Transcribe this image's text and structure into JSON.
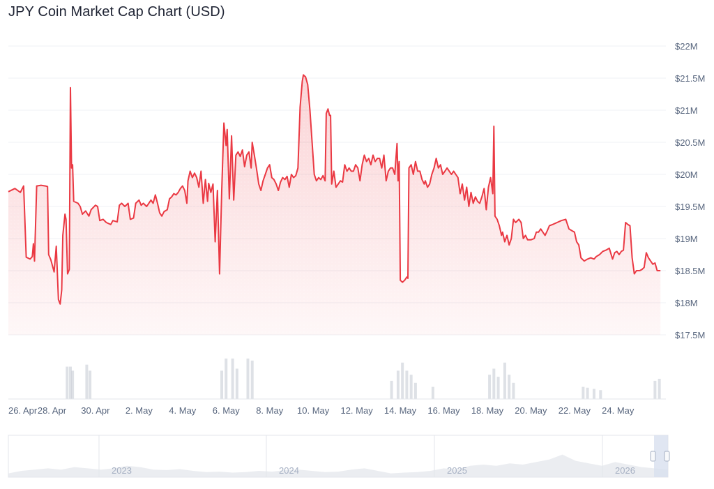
{
  "title": "JPY Coin Market Cap Chart (USD)",
  "colors": {
    "line": "#ea3943",
    "area": "#ea3943",
    "grid": "#eff2f5",
    "axis_text": "#58667e",
    "volume": "#c8cdd6",
    "navigator_area": "#e6e9ee",
    "navigator_window": "#d8e0ef"
  },
  "chart_data": {
    "type": "line",
    "title": "JPY Coin Market Cap Chart (USD)",
    "y_ticks": [
      "$22M",
      "$21.5M",
      "$21M",
      "$20.5M",
      "$20M",
      "$19.5M",
      "$19M",
      "$18.5M",
      "$18M",
      "$17.5M"
    ],
    "ylim": [
      17.5,
      22
    ],
    "x_ticks": [
      "26. Apr",
      "28. Apr",
      "30. Apr",
      "2. May",
      "4. May",
      "6. May",
      "8. May",
      "10. May",
      "12. May",
      "14. May",
      "16. May",
      "18. May",
      "20. May",
      "22. May",
      "24. May"
    ],
    "xlim": [
      0,
      30.2
    ],
    "grid": true,
    "legend": "none",
    "series": [
      {
        "points": [
          [
            0.0,
            19.73
          ],
          [
            0.3,
            19.78
          ],
          [
            0.55,
            19.72
          ],
          [
            0.7,
            19.82
          ],
          [
            0.82,
            18.71
          ],
          [
            1.0,
            18.68
          ],
          [
            1.1,
            18.72
          ],
          [
            1.15,
            18.92
          ],
          [
            1.2,
            18.65
          ],
          [
            1.3,
            19.82
          ],
          [
            1.5,
            19.83
          ],
          [
            1.7,
            19.82
          ],
          [
            1.8,
            19.81
          ],
          [
            1.85,
            18.75
          ],
          [
            1.95,
            18.67
          ],
          [
            2.1,
            18.48
          ],
          [
            2.2,
            18.88
          ],
          [
            2.3,
            18.05
          ],
          [
            2.38,
            17.98
          ],
          [
            2.45,
            18.2
          ],
          [
            2.5,
            19.05
          ],
          [
            2.6,
            19.38
          ],
          [
            2.65,
            19.3
          ],
          [
            2.72,
            18.45
          ],
          [
            2.8,
            18.52
          ],
          [
            2.85,
            21.35
          ],
          [
            2.9,
            20.1
          ],
          [
            2.95,
            20.15
          ],
          [
            3.0,
            19.58
          ],
          [
            3.2,
            19.55
          ],
          [
            3.3,
            19.5
          ],
          [
            3.4,
            19.38
          ],
          [
            3.55,
            19.43
          ],
          [
            3.7,
            19.35
          ],
          [
            3.8,
            19.45
          ],
          [
            4.0,
            19.52
          ],
          [
            4.1,
            19.5
          ],
          [
            4.2,
            19.28
          ],
          [
            4.35,
            19.3
          ],
          [
            4.5,
            19.25
          ],
          [
            4.7,
            19.22
          ],
          [
            4.8,
            19.28
          ],
          [
            5.0,
            19.26
          ],
          [
            5.1,
            19.52
          ],
          [
            5.2,
            19.55
          ],
          [
            5.35,
            19.5
          ],
          [
            5.5,
            19.55
          ],
          [
            5.6,
            19.3
          ],
          [
            5.75,
            19.32
          ],
          [
            5.85,
            19.55
          ],
          [
            6.0,
            19.6
          ],
          [
            6.1,
            19.52
          ],
          [
            6.2,
            19.55
          ],
          [
            6.35,
            19.5
          ],
          [
            6.45,
            19.55
          ],
          [
            6.55,
            19.6
          ],
          [
            6.65,
            19.55
          ],
          [
            6.75,
            19.68
          ],
          [
            6.85,
            19.55
          ],
          [
            6.95,
            19.4
          ],
          [
            7.05,
            19.35
          ],
          [
            7.15,
            19.42
          ],
          [
            7.3,
            19.45
          ],
          [
            7.4,
            19.62
          ],
          [
            7.5,
            19.65
          ],
          [
            7.6,
            19.7
          ],
          [
            7.7,
            19.68
          ],
          [
            7.8,
            19.72
          ],
          [
            7.9,
            19.78
          ],
          [
            8.0,
            19.82
          ],
          [
            8.1,
            19.75
          ],
          [
            8.2,
            19.55
          ],
          [
            8.25,
            19.9
          ],
          [
            8.35,
            20.05
          ],
          [
            8.45,
            19.95
          ],
          [
            8.55,
            20.02
          ],
          [
            8.65,
            19.95
          ],
          [
            8.75,
            19.8
          ],
          [
            8.85,
            20.05
          ],
          [
            8.95,
            19.55
          ],
          [
            9.05,
            19.92
          ],
          [
            9.15,
            19.58
          ],
          [
            9.2,
            19.86
          ],
          [
            9.3,
            19.72
          ],
          [
            9.4,
            19.85
          ],
          [
            9.5,
            18.95
          ],
          [
            9.6,
            19.75
          ],
          [
            9.7,
            18.45
          ],
          [
            9.8,
            19.75
          ],
          [
            9.9,
            20.8
          ],
          [
            10.0,
            20.45
          ],
          [
            10.05,
            20.7
          ],
          [
            10.15,
            19.62
          ],
          [
            10.25,
            20.6
          ],
          [
            10.35,
            19.6
          ],
          [
            10.45,
            20.3
          ],
          [
            10.55,
            20.35
          ],
          [
            10.65,
            20.28
          ],
          [
            10.75,
            20.38
          ],
          [
            10.85,
            20.12
          ],
          [
            10.95,
            20.3
          ],
          [
            11.05,
            20.35
          ],
          [
            11.15,
            20.1
          ],
          [
            11.2,
            20.5
          ],
          [
            11.3,
            20.3
          ],
          [
            11.4,
            20.08
          ],
          [
            11.5,
            19.85
          ],
          [
            11.6,
            19.75
          ],
          [
            11.7,
            19.9
          ],
          [
            11.8,
            20.0
          ],
          [
            11.9,
            20.1
          ],
          [
            12.0,
            20.15
          ],
          [
            12.1,
            19.95
          ],
          [
            12.2,
            19.92
          ],
          [
            12.3,
            19.85
          ],
          [
            12.4,
            19.75
          ],
          [
            12.5,
            19.88
          ],
          [
            12.6,
            19.95
          ],
          [
            12.7,
            19.92
          ],
          [
            12.8,
            19.97
          ],
          [
            12.9,
            19.8
          ],
          [
            13.0,
            20.0
          ],
          [
            13.1,
            19.95
          ],
          [
            13.2,
            19.98
          ],
          [
            13.3,
            20.1
          ],
          [
            13.4,
            21.05
          ],
          [
            13.5,
            21.45
          ],
          [
            13.55,
            21.55
          ],
          [
            13.65,
            21.52
          ],
          [
            13.75,
            21.4
          ],
          [
            13.85,
            21.0
          ],
          [
            13.95,
            20.5
          ],
          [
            14.05,
            20.0
          ],
          [
            14.15,
            19.9
          ],
          [
            14.25,
            19.95
          ],
          [
            14.35,
            19.92
          ],
          [
            14.45,
            19.98
          ],
          [
            14.55,
            19.9
          ],
          [
            14.6,
            20.95
          ],
          [
            14.68,
            21.02
          ],
          [
            14.75,
            20.92
          ],
          [
            14.8,
            20.92
          ],
          [
            14.85,
            19.85
          ],
          [
            14.95,
            20.05
          ],
          [
            15.05,
            19.8
          ],
          [
            15.15,
            19.85
          ],
          [
            15.25,
            19.9
          ],
          [
            15.35,
            19.88
          ],
          [
            15.45,
            20.15
          ],
          [
            15.55,
            20.05
          ],
          [
            15.65,
            20.1
          ],
          [
            15.75,
            20.05
          ],
          [
            15.85,
            20.05
          ],
          [
            15.95,
            20.15
          ],
          [
            16.05,
            20.1
          ],
          [
            16.15,
            19.9
          ],
          [
            16.25,
            20.15
          ],
          [
            16.35,
            20.3
          ],
          [
            16.45,
            20.2
          ],
          [
            16.55,
            20.25
          ],
          [
            16.65,
            20.15
          ],
          [
            16.75,
            20.3
          ],
          [
            16.85,
            20.2
          ],
          [
            16.95,
            20.25
          ],
          [
            17.05,
            20.25
          ],
          [
            17.15,
            20.1
          ],
          [
            17.25,
            20.3
          ],
          [
            17.35,
            19.9
          ],
          [
            17.45,
            20.05
          ],
          [
            17.55,
            20.1
          ],
          [
            17.65,
            20.1
          ],
          [
            17.75,
            20.0
          ],
          [
            17.85,
            20.48
          ],
          [
            17.9,
            19.9
          ],
          [
            17.95,
            20.2
          ],
          [
            18.0,
            18.35
          ],
          [
            18.1,
            18.32
          ],
          [
            18.2,
            18.35
          ],
          [
            18.3,
            18.4
          ],
          [
            18.35,
            18.38
          ],
          [
            18.4,
            20.1
          ],
          [
            18.5,
            20.15
          ],
          [
            18.6,
            20.0
          ],
          [
            18.7,
            20.2
          ],
          [
            18.8,
            20.05
          ],
          [
            18.9,
            20.05
          ],
          [
            19.0,
            19.92
          ],
          [
            19.1,
            19.85
          ],
          [
            19.15,
            19.9
          ],
          [
            19.25,
            19.8
          ],
          [
            19.35,
            19.85
          ],
          [
            19.45,
            20.0
          ],
          [
            19.55,
            20.1
          ],
          [
            19.65,
            20.25
          ],
          [
            19.75,
            20.1
          ],
          [
            19.85,
            20.15
          ],
          [
            19.95,
            20.0
          ],
          [
            20.05,
            20.05
          ],
          [
            20.15,
            20.1
          ],
          [
            20.25,
            20.05
          ],
          [
            20.35,
            20.0
          ],
          [
            20.45,
            20.05
          ],
          [
            20.55,
            20.0
          ],
          [
            20.65,
            19.95
          ],
          [
            20.75,
            19.7
          ],
          [
            20.85,
            19.85
          ],
          [
            20.95,
            19.6
          ],
          [
            21.05,
            19.8
          ],
          [
            21.15,
            19.5
          ],
          [
            21.25,
            19.72
          ],
          [
            21.35,
            19.55
          ],
          [
            21.45,
            19.65
          ],
          [
            21.55,
            19.58
          ],
          [
            21.65,
            19.55
          ],
          [
            21.75,
            19.65
          ],
          [
            21.85,
            19.78
          ],
          [
            21.95,
            19.45
          ],
          [
            22.05,
            19.8
          ],
          [
            22.15,
            19.95
          ],
          [
            22.25,
            19.7
          ],
          [
            22.3,
            20.75
          ],
          [
            22.35,
            19.35
          ],
          [
            22.45,
            19.3
          ],
          [
            22.55,
            19.2
          ],
          [
            22.65,
            19.05
          ],
          [
            22.7,
            19.1
          ],
          [
            22.8,
            18.95
          ],
          [
            22.9,
            19.05
          ],
          [
            23.0,
            18.9
          ],
          [
            23.1,
            19.0
          ],
          [
            23.2,
            19.3
          ],
          [
            23.3,
            19.25
          ],
          [
            23.45,
            19.3
          ],
          [
            23.55,
            19.25
          ],
          [
            23.65,
            19.0
          ],
          [
            23.75,
            19.05
          ],
          [
            23.85,
            18.98
          ],
          [
            24.0,
            18.98
          ],
          [
            24.15,
            19.0
          ],
          [
            24.25,
            19.1
          ],
          [
            24.35,
            19.1
          ],
          [
            24.45,
            19.15
          ],
          [
            24.55,
            19.1
          ],
          [
            24.65,
            19.05
          ],
          [
            24.75,
            19.12
          ],
          [
            24.85,
            19.2
          ],
          [
            25.0,
            19.22
          ],
          [
            25.2,
            19.25
          ],
          [
            25.4,
            19.28
          ],
          [
            25.6,
            19.3
          ],
          [
            25.75,
            19.15
          ],
          [
            25.9,
            19.12
          ],
          [
            26.0,
            19.1
          ],
          [
            26.1,
            18.95
          ],
          [
            26.2,
            18.9
          ],
          [
            26.3,
            18.7
          ],
          [
            26.45,
            18.65
          ],
          [
            26.6,
            18.68
          ],
          [
            26.75,
            18.7
          ],
          [
            26.9,
            18.68
          ],
          [
            27.0,
            18.72
          ],
          [
            27.15,
            18.75
          ],
          [
            27.3,
            18.8
          ],
          [
            27.45,
            18.82
          ],
          [
            27.6,
            18.85
          ],
          [
            27.75,
            18.68
          ],
          [
            27.85,
            18.78
          ],
          [
            27.95,
            18.8
          ],
          [
            28.05,
            18.75
          ],
          [
            28.15,
            18.8
          ],
          [
            28.25,
            18.82
          ],
          [
            28.35,
            19.25
          ],
          [
            28.45,
            19.22
          ],
          [
            28.55,
            19.2
          ],
          [
            28.65,
            18.7
          ],
          [
            28.75,
            18.45
          ],
          [
            28.85,
            18.5
          ],
          [
            29.0,
            18.5
          ],
          [
            29.1,
            18.52
          ],
          [
            29.2,
            18.55
          ],
          [
            29.3,
            18.78
          ],
          [
            29.4,
            18.7
          ],
          [
            29.5,
            18.65
          ],
          [
            29.6,
            18.6
          ],
          [
            29.7,
            18.62
          ],
          [
            29.8,
            18.5
          ],
          [
            29.95,
            18.5
          ]
        ]
      }
    ],
    "volume_series": {
      "x": [
        2.7,
        2.85,
        2.95,
        3.6,
        3.75,
        9.8,
        10.0,
        10.3,
        10.5,
        11.0,
        11.2,
        17.6,
        17.9,
        18.1,
        18.3,
        18.5,
        18.7,
        19.5,
        22.1,
        22.3,
        22.5,
        22.8,
        23.0,
        23.2,
        26.4,
        26.6,
        26.9,
        27.2,
        29.7,
        29.9
      ],
      "v": [
        0.8,
        0.8,
        0.7,
        0.85,
        0.7,
        0.7,
        1.0,
        1.0,
        0.75,
        1.0,
        0.95,
        0.45,
        0.7,
        0.9,
        0.7,
        0.6,
        0.4,
        0.3,
        0.6,
        0.75,
        0.55,
        0.9,
        0.6,
        0.4,
        0.3,
        0.28,
        0.25,
        0.22,
        0.45,
        0.5
      ]
    },
    "navigator": {
      "labels": [
        "2023",
        "2024",
        "2025",
        "2026"
      ]
    }
  }
}
